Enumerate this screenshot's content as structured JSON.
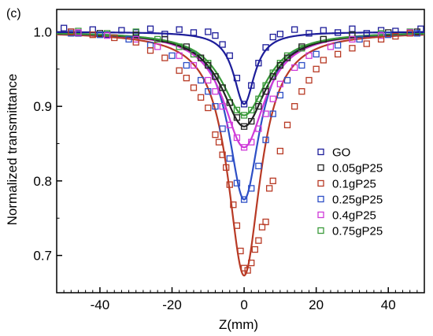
{
  "chart_data": {
    "type": "scatter",
    "panel_label": "(c)",
    "xlabel": "Z(mm)",
    "ylabel": "Normalized transmittance",
    "xlim": [
      -52,
      50
    ],
    "ylim": [
      0.65,
      1.03
    ],
    "xticks": [
      -40,
      -20,
      0,
      20,
      40
    ],
    "yticks": [
      0.7,
      0.8,
      0.9,
      1.0
    ],
    "xtick_labels": [
      "-40",
      "-20",
      "0",
      "20",
      "40"
    ],
    "ytick_labels": [
      "0.7",
      "0.8",
      "0.9",
      "1.0"
    ],
    "grid": false,
    "legend_position": "lower-right",
    "series": [
      {
        "name": "GO",
        "color": "#1d1d9a",
        "min": 0.903,
        "width": 3.5,
        "points": [
          [
            -50,
            1.005
          ],
          [
            -46,
            0.998
          ],
          [
            -42,
            1.003
          ],
          [
            -38,
            0.996
          ],
          [
            -34,
            1.002
          ],
          [
            -30,
            0.999
          ],
          [
            -26,
            1.004
          ],
          [
            -22,
            0.997
          ],
          [
            -18,
            1.003
          ],
          [
            -14,
            0.999
          ],
          [
            -10,
            1.0
          ],
          [
            -8,
            0.995
          ],
          [
            -6,
            0.983
          ],
          [
            -4,
            0.968
          ],
          [
            -2,
            0.938
          ],
          [
            0,
            0.903
          ],
          [
            2,
            0.928
          ],
          [
            4,
            0.958
          ],
          [
            6,
            0.979
          ],
          [
            8,
            0.993
          ],
          [
            10,
            0.997
          ],
          [
            14,
            1.003
          ],
          [
            18,
            0.998
          ],
          [
            22,
            1.002
          ],
          [
            26,
            0.999
          ],
          [
            30,
            1.004
          ],
          [
            34,
            0.998
          ],
          [
            38,
            1.002
          ],
          [
            42,
            1.001
          ],
          [
            46,
            0.999
          ],
          [
            49,
            1.004
          ]
        ]
      },
      {
        "name": "0.05gP25",
        "color": "#222222",
        "min": 0.873,
        "width": 7.5,
        "points": [
          [
            -48,
            1.0
          ],
          [
            -40,
            0.998
          ],
          [
            -30,
            0.996
          ],
          [
            -22,
            0.99
          ],
          [
            -16,
            0.98
          ],
          [
            -12,
            0.965
          ],
          [
            -10,
            0.955
          ],
          [
            -8,
            0.94
          ],
          [
            -6,
            0.925
          ],
          [
            -4,
            0.905
          ],
          [
            -2,
            0.885
          ],
          [
            0,
            0.873
          ],
          [
            2,
            0.88
          ],
          [
            4,
            0.9
          ],
          [
            6,
            0.92
          ],
          [
            8,
            0.94
          ],
          [
            10,
            0.955
          ],
          [
            12,
            0.965
          ],
          [
            16,
            0.98
          ],
          [
            22,
            0.99
          ],
          [
            30,
            0.996
          ],
          [
            40,
            0.999
          ],
          [
            48,
            1.0
          ]
        ]
      },
      {
        "name": "0.1gP25",
        "color": "#b83a25",
        "min": 0.673,
        "width": 5.5,
        "points": [
          [
            -48,
            1.0
          ],
          [
            -42,
            0.996
          ],
          [
            -36,
            0.992
          ],
          [
            -30,
            0.986
          ],
          [
            -26,
            0.975
          ],
          [
            -22,
            0.965
          ],
          [
            -18,
            0.948
          ],
          [
            -16,
            0.938
          ],
          [
            -14,
            0.925
          ],
          [
            -12,
            0.912
          ],
          [
            -10,
            0.898
          ],
          [
            -8,
            0.862
          ],
          [
            -7,
            0.852
          ],
          [
            -6,
            0.835
          ],
          [
            -5,
            0.818
          ],
          [
            -4,
            0.795
          ],
          [
            -3,
            0.768
          ],
          [
            -2,
            0.74
          ],
          [
            -1,
            0.706
          ],
          [
            0,
            0.683
          ],
          [
            1,
            0.68
          ],
          [
            2,
            0.69
          ],
          [
            3,
            0.708
          ],
          [
            4,
            0.72
          ],
          [
            5,
            0.738
          ],
          [
            6,
            0.745
          ],
          [
            7,
            0.79
          ],
          [
            8,
            0.8
          ],
          [
            10,
            0.84
          ],
          [
            12,
            0.875
          ],
          [
            14,
            0.9
          ],
          [
            16,
            0.92
          ],
          [
            18,
            0.935
          ],
          [
            20,
            0.95
          ],
          [
            22,
            0.962
          ],
          [
            26,
            0.97
          ],
          [
            30,
            0.978
          ],
          [
            34,
            0.984
          ],
          [
            38,
            0.99
          ],
          [
            42,
            0.994
          ],
          [
            46,
            0.998
          ]
        ]
      },
      {
        "name": "0.25gP25",
        "color": "#2d4fc6",
        "min": 0.775,
        "width": 5.2,
        "points": [
          [
            -48,
            0.998
          ],
          [
            -40,
            0.996
          ],
          [
            -32,
            0.99
          ],
          [
            -26,
            0.982
          ],
          [
            -20,
            0.968
          ],
          [
            -16,
            0.955
          ],
          [
            -12,
            0.935
          ],
          [
            -10,
            0.92
          ],
          [
            -8,
            0.9
          ],
          [
            -6,
            0.87
          ],
          [
            -4,
            0.83
          ],
          [
            -2,
            0.797
          ],
          [
            0,
            0.775
          ],
          [
            2,
            0.79
          ],
          [
            4,
            0.82
          ],
          [
            6,
            0.855
          ],
          [
            8,
            0.89
          ],
          [
            10,
            0.915
          ],
          [
            12,
            0.935
          ],
          [
            16,
            0.955
          ],
          [
            20,
            0.97
          ],
          [
            26,
            0.982
          ],
          [
            32,
            0.99
          ],
          [
            40,
            0.996
          ],
          [
            48,
            0.998
          ]
        ]
      },
      {
        "name": "0.4gP25",
        "color": "#cf3ad8",
        "min": 0.845,
        "width": 7.0,
        "points": [
          [
            -46,
            0.999
          ],
          [
            -38,
            0.995
          ],
          [
            -30,
            0.99
          ],
          [
            -24,
            0.98
          ],
          [
            -18,
            0.968
          ],
          [
            -14,
            0.955
          ],
          [
            -10,
            0.935
          ],
          [
            -8,
            0.92
          ],
          [
            -6,
            0.9
          ],
          [
            -4,
            0.875
          ],
          [
            -2,
            0.858
          ],
          [
            0,
            0.845
          ],
          [
            2,
            0.852
          ],
          [
            4,
            0.87
          ],
          [
            6,
            0.89
          ],
          [
            8,
            0.91
          ],
          [
            10,
            0.93
          ],
          [
            14,
            0.952
          ],
          [
            18,
            0.968
          ],
          [
            24,
            0.98
          ],
          [
            30,
            0.99
          ],
          [
            38,
            0.995
          ],
          [
            46,
            0.999
          ]
        ]
      },
      {
        "name": "0.75gP25",
        "color": "#3a9a3a",
        "min": 0.888,
        "width": 7.5,
        "points": [
          [
            -46,
            1.001
          ],
          [
            -38,
            0.998
          ],
          [
            -30,
            1.0
          ],
          [
            -24,
            0.99
          ],
          [
            -18,
            0.98
          ],
          [
            -14,
            0.97
          ],
          [
            -10,
            0.958
          ],
          [
            -8,
            0.94
          ],
          [
            -6,
            0.925
          ],
          [
            -4,
            0.905
          ],
          [
            -2,
            0.895
          ],
          [
            0,
            0.888
          ],
          [
            2,
            0.895
          ],
          [
            4,
            0.91
          ],
          [
            6,
            0.928
          ],
          [
            8,
            0.945
          ],
          [
            10,
            0.958
          ],
          [
            12,
            0.968
          ],
          [
            16,
            0.978
          ],
          [
            22,
            0.99
          ],
          [
            30,
            0.996
          ],
          [
            38,
            0.998
          ],
          [
            46,
            1.0
          ]
        ]
      }
    ]
  }
}
